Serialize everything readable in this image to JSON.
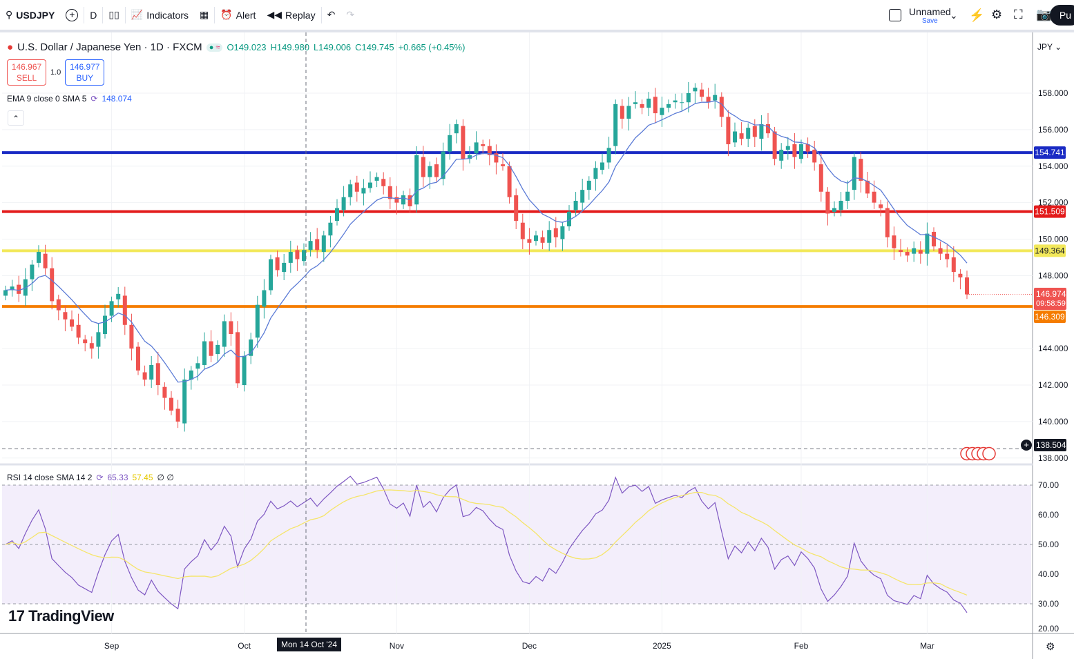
{
  "toolbar": {
    "symbol": "USDJPY",
    "interval": "D",
    "indicators": "Indicators",
    "alert": "Alert",
    "replay": "Replay",
    "layout_name": "Unnamed",
    "save": "Save",
    "publish": "Pu"
  },
  "legend": {
    "title": "U.S. Dollar / Japanese Yen · 1D · FXCM",
    "open": "O149.023",
    "high": "H149.980",
    "low": "L149.006",
    "close": "C149.745",
    "change": "+0.665 (+0.45%)",
    "sell_price": "146.967",
    "sell": "SELL",
    "qty": "1.0",
    "buy_price": "146.977",
    "buy": "BUY",
    "ema_label": "EMA 9 close 0 SMA 5",
    "ema_value": "148.074",
    "rsi_label": "RSI 14 close SMA 14 2",
    "rsi_value": "65.33",
    "rsi_sma": "57.45",
    "rsi_extra": "∅ ∅"
  },
  "currency": "JPY",
  "logo": "TradingView",
  "crosshair": {
    "date": "Mon 14 Oct '24",
    "price": "138.504"
  },
  "last_price": {
    "price": "146.974",
    "countdown": "09:58:59"
  },
  "colors": {
    "up": "#26a69a",
    "down": "#ef5350",
    "ema": "#5b7bd6",
    "rsi": "#7e57c2",
    "rsi_sma": "#f5e56b"
  },
  "chart_data": {
    "type": "candlestick",
    "title": "USDJPY 1D FXCM",
    "x_ticks": [
      {
        "label": "Sep",
        "i": 16
      },
      {
        "label": "Oct",
        "i": 36
      },
      {
        "label": "Nov",
        "i": 59
      },
      {
        "label": "Dec",
        "i": 79
      },
      {
        "label": "2025",
        "i": 99
      },
      {
        "label": "Feb",
        "i": 120
      },
      {
        "label": "Mar",
        "i": 139
      }
    ],
    "y_ticks": [
      "158.000",
      "156.000",
      "154.000",
      "152.000",
      "150.000",
      "148.000",
      "144.000",
      "142.000",
      "140.000",
      "138.000"
    ],
    "ylim": [
      137.5,
      160.5
    ],
    "rsi_ticks": [
      "70.00",
      "60.00",
      "50.00",
      "40.00",
      "30.00",
      "20.00"
    ],
    "rsi_lim": [
      19,
      77
    ],
    "closes": [
      147.2,
      147.4,
      147.0,
      147.8,
      148.6,
      149.3,
      148.4,
      146.6,
      146.1,
      145.6,
      145.2,
      144.6,
      144.3,
      144.0,
      144.9,
      145.8,
      146.6,
      147.0,
      145.3,
      144.0,
      142.8,
      142.3,
      143.1,
      142.0,
      141.3,
      140.6,
      140.0,
      142.3,
      142.8,
      143.2,
      144.4,
      143.6,
      144.2,
      145.5,
      144.8,
      142.1,
      143.6,
      144.5,
      146.4,
      147.2,
      148.9,
      148.3,
      148.7,
      149.3,
      148.9,
      149.4,
      149.9,
      149.4,
      150.2,
      150.9,
      151.7,
      152.3,
      153.0,
      152.6,
      152.8,
      153.1,
      153.4,
      152.9,
      152.2,
      152.0,
      152.4,
      151.8,
      154.6,
      153.4,
      154.0,
      153.4,
      154.8,
      155.7,
      156.3,
      154.4,
      154.6,
      155.3,
      155.1,
      154.6,
      154.2,
      154.0,
      152.3,
      151.0,
      150.0,
      149.8,
      150.2,
      149.8,
      150.5,
      150.1,
      150.7,
      151.5,
      152.1,
      152.7,
      153.2,
      153.9,
      154.2,
      155.0,
      157.4,
      156.6,
      157.3,
      157.5,
      157.2,
      157.7,
      156.9,
      157.2,
      157.4,
      157.6,
      157.5,
      158.0,
      158.3,
      157.8,
      157.5,
      157.9,
      156.7,
      155.2,
      155.9,
      155.5,
      156.1,
      155.6,
      156.3,
      155.8,
      154.4,
      154.9,
      155.1,
      154.5,
      155.2,
      154.8,
      154.2,
      152.6,
      151.4,
      151.7,
      152.1,
      152.6,
      154.5,
      153.2,
      152.5,
      152.0,
      151.7,
      150.1,
      149.5,
      149.3,
      149.1,
      149.5,
      149.2,
      150.3,
      149.6,
      149.2,
      148.9,
      148.2,
      147.9,
      146.97
    ],
    "hlines": [
      {
        "price": 154.741,
        "label": "154.741",
        "color": "#1a2bc4"
      },
      {
        "price": 151.509,
        "label": "151.509",
        "color": "#e31b1b"
      },
      {
        "price": 149.364,
        "label": "149.364",
        "color": "#f2e85a"
      },
      {
        "price": 146.309,
        "label": "146.309",
        "color": "#f57c00"
      }
    ]
  }
}
